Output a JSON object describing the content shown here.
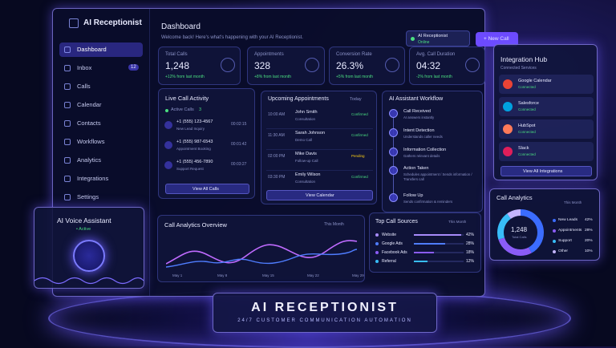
{
  "app": {
    "name": "AI Receptionist"
  },
  "sidebar": {
    "items": [
      "Dashboard",
      "Inbox",
      "Calls",
      "Calendar",
      "Contacts",
      "Workflows",
      "Analytics",
      "Integrations",
      "Settings"
    ],
    "inbox_badge": "12"
  },
  "header": {
    "title": "Dashboard",
    "subtitle": "Welcome back! Here's what's happening with your AI Receptionist.",
    "status_name": "AI Receptionist",
    "status": "Online",
    "new_call": "+ New Call"
  },
  "stats": [
    {
      "label": "Total Calls",
      "value": "1,248",
      "delta": "+12% from last month"
    },
    {
      "label": "Appointments",
      "value": "328",
      "delta": "+8% from last month"
    },
    {
      "label": "Conversion Rate",
      "value": "26.3%",
      "delta": "+5% from last month"
    },
    {
      "label": "Avg. Call Duration",
      "value": "04:32",
      "delta": "-2% from last month"
    }
  ],
  "live_calls": {
    "title": "Live Call Activity",
    "active": "Active Calls",
    "active_count": "3",
    "calls": [
      {
        "number": "+1 (555) 123-4567",
        "desc": "New Lead Inquiry",
        "time": "00:02:15"
      },
      {
        "number": "+1 (555) 987-6543",
        "desc": "Appointment Booking",
        "time": "00:01:42"
      },
      {
        "number": "+1 (555) 456-7890",
        "desc": "Support Request",
        "time": "00:03:27"
      }
    ],
    "button": "View All Calls"
  },
  "appointments": {
    "title": "Upcoming Appointments",
    "filter": "Today",
    "items": [
      {
        "time": "10:00 AM",
        "name": "John Smith",
        "desc": "Consultation",
        "status": "Confirmed"
      },
      {
        "time": "11:30 AM",
        "name": "Sarah Johnson",
        "desc": "Demo Call",
        "status": "Confirmed"
      },
      {
        "time": "02:00 PM",
        "name": "Mike Davis",
        "desc": "Follow-up Call",
        "status": "Pending"
      },
      {
        "time": "03:30 PM",
        "name": "Emily Wilson",
        "desc": "Consultation",
        "status": "Confirmed"
      }
    ],
    "button": "View Calendar"
  },
  "workflow": {
    "title": "AI Assistant Workflow",
    "steps": [
      {
        "title": "Call Received",
        "desc": "AI answers instantly"
      },
      {
        "title": "Intent Detection",
        "desc": "Understands caller needs"
      },
      {
        "title": "Information Collection",
        "desc": "Gathers relevant details"
      },
      {
        "title": "Action Taken",
        "desc": "Schedules appointment / Sends information / Transfers call"
      },
      {
        "title": "Follow Up",
        "desc": "Sends confirmation & reminders"
      }
    ]
  },
  "analytics_overview": {
    "title": "Call Analytics Overview",
    "filter": "This Month",
    "x_labels": [
      "May 1",
      "May 8",
      "May 15",
      "May 22",
      "May 29"
    ]
  },
  "sources": {
    "title": "Top Call Sources",
    "filter": "This Month",
    "items": [
      {
        "name": "Website",
        "pct": {
          "value": 42,
          "label": "42%"
        }
      },
      {
        "name": "Google Ads",
        "pct": {
          "value": 28,
          "label": "28%"
        }
      },
      {
        "name": "Facebook Ads",
        "pct": {
          "value": 18,
          "label": "18%"
        }
      },
      {
        "name": "Referral",
        "pct": {
          "value": 12,
          "label": "12%"
        }
      }
    ]
  },
  "integration_hub": {
    "title": "Integration Hub",
    "subtitle": "Connected Services",
    "items": [
      {
        "name": "Google Calendar",
        "status": "Connected"
      },
      {
        "name": "Salesforce",
        "status": "Connected"
      },
      {
        "name": "HubSpot",
        "status": "Connected"
      },
      {
        "name": "Slack",
        "status": "Connected"
      }
    ],
    "button": "View All Integrations"
  },
  "call_analytics": {
    "title": "Call Analytics",
    "filter": "This Month",
    "total": "1,248",
    "total_label": "Total Calls",
    "items": [
      {
        "name": "New Leads",
        "pct": {
          "value": 42,
          "label": "42%"
        }
      },
      {
        "name": "Appointments",
        "pct": {
          "value": 28,
          "label": "28%"
        }
      },
      {
        "name": "Support",
        "pct": {
          "value": 20,
          "label": "20%"
        }
      },
      {
        "name": "Other",
        "pct": {
          "value": 10,
          "label": "10%"
        }
      }
    ]
  },
  "voice": {
    "title": "AI Voice Assistant",
    "status": "• Active"
  },
  "banner": {
    "title": "AI RECEPTIONIST",
    "subtitle": "24/7 CUSTOMER COMMUNICATION AUTOMATION"
  }
}
